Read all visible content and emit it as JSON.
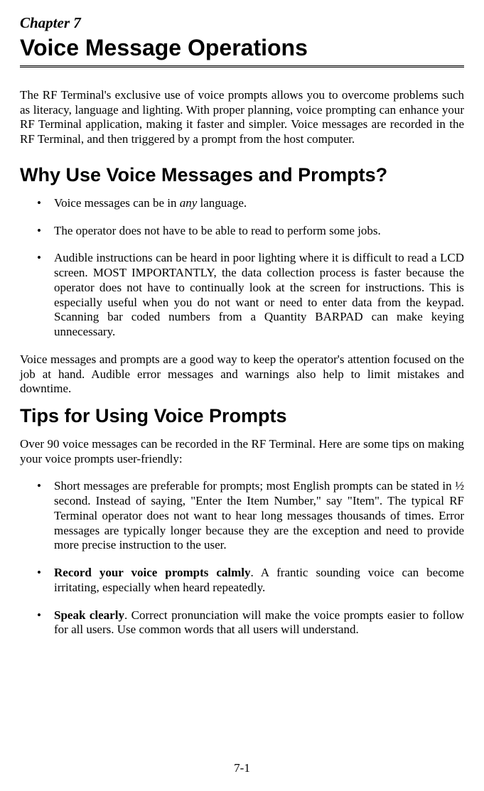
{
  "chapter_label": "Chapter 7",
  "chapter_title": "Voice Message Operations",
  "intro_paragraph": "The RF Terminal's exclusive use of voice prompts allows you to overcome problems such as literacy, language and lighting. With proper planning, voice prompting can enhance your RF Terminal application, making it faster and simpler.  Voice messages are recorded in the RF Terminal, and then triggered by a prompt from the host computer.",
  "section1": {
    "heading": "Why Use Voice Messages and Prompts?",
    "bullets": {
      "b1_pre": "Voice messages can be in ",
      "b1_italic": "any",
      "b1_post": " language.",
      "b2": "The operator does not have to be able to read to perform some jobs.",
      "b3": "Audible instructions can be heard in poor lighting where it is difficult to read a LCD screen. MOST IMPORTANTLY, the data collection process is faster because the operator does not have to continually look at the screen for instructions. This is especially useful when you do not want or need to enter data from the keypad. Scanning bar coded numbers from a Quantity BARPAD can make keying unnecessary."
    },
    "closing_para": "Voice messages and prompts are a good way to keep the operator's attention focused on the job at hand. Audible error messages and warnings also help to limit mistakes and downtime."
  },
  "section2": {
    "heading": "Tips for Using Voice Prompts",
    "intro": "Over 90 voice messages can be recorded in the RF Terminal. Here are some tips on making your voice prompts user-friendly:",
    "bullets": {
      "b1": "Short messages are preferable for prompts; most English prompts can be stated in ½ second. Instead of saying, \"Enter the Item Number,\" say \"Item\". The typical RF Terminal operator does not want to hear long messages thousands of times. Error messages are typically longer because they are the exception and need to provide more precise instruction to the user.",
      "b2_bold": "Record your voice prompts calmly",
      "b2_rest": ". A frantic sounding voice can become irritating, especially when heard repeatedly.",
      "b3_bold": "Speak clearly",
      "b3_rest": ". Correct pronunciation will make the voice prompts easier to follow for all users. Use common words that all users will understand."
    }
  },
  "page_number": "7-1"
}
